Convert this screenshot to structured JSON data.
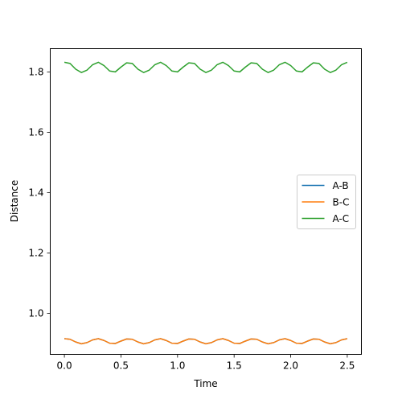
{
  "chart_data": {
    "type": "line",
    "title": "",
    "xlabel": "Time",
    "ylabel": "Distance",
    "xlim": [
      -0.125,
      2.625
    ],
    "ylim": [
      0.864,
      1.877
    ],
    "xticks": [
      0.0,
      0.5,
      1.0,
      1.5,
      2.0,
      2.5
    ],
    "xtick_labels": [
      "0.0",
      "0.5",
      "1.0",
      "1.5",
      "2.0",
      "2.5"
    ],
    "yticks": [
      1.0,
      1.2,
      1.4,
      1.6,
      1.8
    ],
    "ytick_labels": [
      "1.0",
      "1.2",
      "1.4",
      "1.6",
      "1.8"
    ],
    "legend_position": "center-right",
    "grid": false,
    "x": [
      0.0,
      0.05,
      0.1,
      0.15,
      0.2,
      0.25,
      0.3,
      0.35,
      0.4,
      0.45,
      0.5,
      0.55,
      0.6,
      0.65,
      0.7,
      0.75,
      0.8,
      0.85,
      0.9,
      0.95,
      1.0,
      1.05,
      1.1,
      1.15,
      1.2,
      1.25,
      1.3,
      1.35,
      1.4,
      1.45,
      1.5,
      1.55,
      1.6,
      1.65,
      1.7,
      1.75,
      1.8,
      1.85,
      1.9,
      1.95,
      2.0,
      2.05,
      2.1,
      2.15,
      2.2,
      2.25,
      2.3,
      2.35,
      2.4,
      2.45,
      2.5
    ],
    "series": [
      {
        "name": "A-B",
        "color": "#1f77b4",
        "values": [
          0.916,
          0.914,
          0.905,
          0.899,
          0.903,
          0.912,
          0.916,
          0.91,
          0.901,
          0.9,
          0.908,
          0.915,
          0.914,
          0.905,
          0.899,
          0.903,
          0.912,
          0.916,
          0.91,
          0.901,
          0.9,
          0.908,
          0.915,
          0.914,
          0.905,
          0.899,
          0.903,
          0.912,
          0.916,
          0.91,
          0.901,
          0.9,
          0.908,
          0.915,
          0.914,
          0.905,
          0.899,
          0.903,
          0.912,
          0.916,
          0.91,
          0.901,
          0.9,
          0.908,
          0.915,
          0.914,
          0.905,
          0.899,
          0.903,
          0.912,
          0.916
        ]
      },
      {
        "name": "B-C",
        "color": "#ff7f0e",
        "values": [
          0.916,
          0.914,
          0.905,
          0.899,
          0.903,
          0.912,
          0.916,
          0.91,
          0.901,
          0.9,
          0.908,
          0.915,
          0.914,
          0.905,
          0.899,
          0.903,
          0.912,
          0.916,
          0.91,
          0.901,
          0.9,
          0.908,
          0.915,
          0.914,
          0.905,
          0.899,
          0.903,
          0.912,
          0.916,
          0.91,
          0.901,
          0.9,
          0.908,
          0.915,
          0.914,
          0.905,
          0.899,
          0.903,
          0.912,
          0.916,
          0.91,
          0.901,
          0.9,
          0.908,
          0.915,
          0.914,
          0.905,
          0.899,
          0.903,
          0.912,
          0.916
        ]
      },
      {
        "name": "A-C",
        "color": "#2ca02c",
        "values": [
          1.832,
          1.828,
          1.809,
          1.798,
          1.806,
          1.824,
          1.832,
          1.821,
          1.803,
          1.8,
          1.816,
          1.83,
          1.828,
          1.809,
          1.798,
          1.806,
          1.824,
          1.832,
          1.821,
          1.803,
          1.8,
          1.816,
          1.83,
          1.828,
          1.809,
          1.798,
          1.806,
          1.824,
          1.832,
          1.821,
          1.803,
          1.8,
          1.816,
          1.83,
          1.828,
          1.809,
          1.798,
          1.806,
          1.824,
          1.832,
          1.821,
          1.803,
          1.8,
          1.816,
          1.83,
          1.828,
          1.809,
          1.798,
          1.806,
          1.824,
          1.832
        ]
      }
    ]
  }
}
